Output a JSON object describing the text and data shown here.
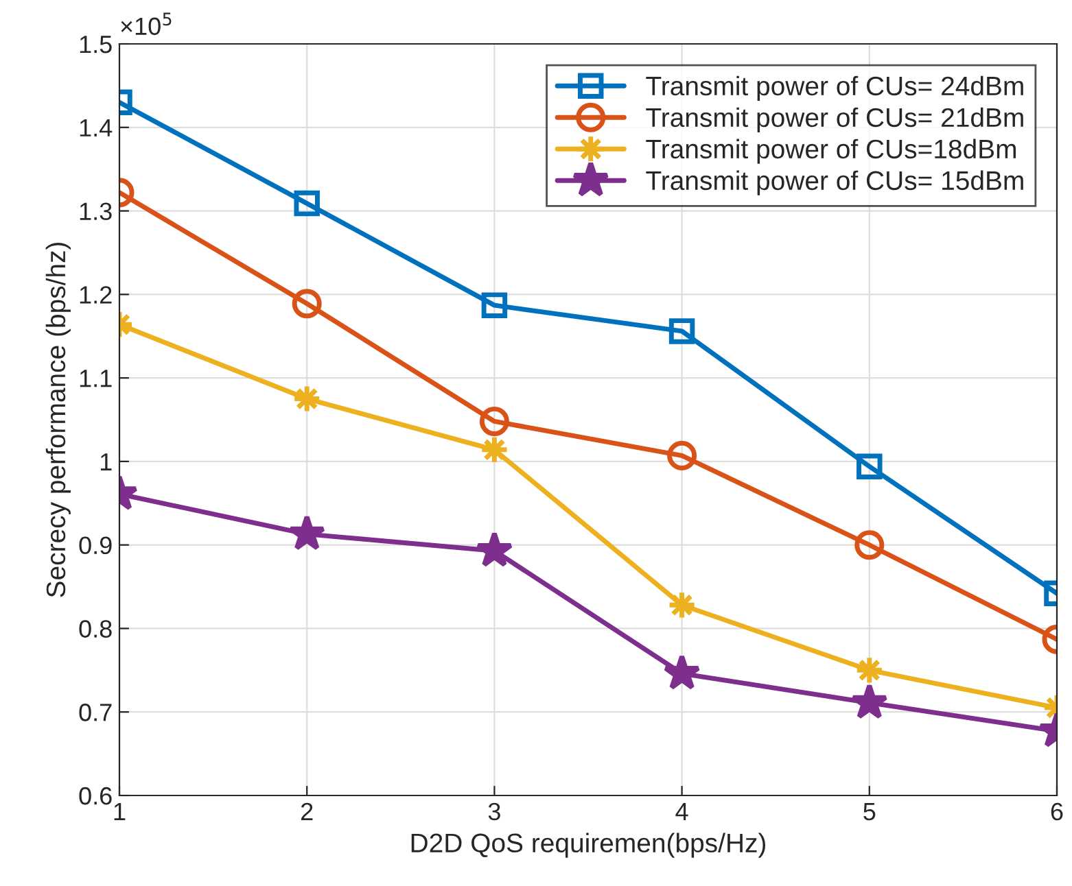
{
  "chart_data": {
    "type": "line",
    "xlabel": "D2D QoS requiremen(bps/Hz)",
    "ylabel": "Secrecy performance (bps/hz)",
    "annotations": [
      "×10$^{5}$"
    ],
    "x": [
      1,
      2,
      3,
      4,
      5,
      6
    ],
    "series": [
      {
        "name": "Transmit power of CUs= 24dBm",
        "color": "#0072bd",
        "marker": "square",
        "values": [
          1.43,
          1.309,
          1.187,
          1.156,
          0.994,
          0.842
        ]
      },
      {
        "name": "Transmit power of CUs= 21dBm",
        "color": "#d95319",
        "marker": "circle",
        "values": [
          1.322,
          1.189,
          1.048,
          1.007,
          0.9,
          0.787
        ]
      },
      {
        "name": "Transmit power of CUs=18dBm",
        "color": "#edb120",
        "marker": "cross",
        "values": [
          1.164,
          1.075,
          1.014,
          0.828,
          0.75,
          0.705
        ]
      },
      {
        "name": "Transmit power of CUs= 15dBm",
        "color": "#7e2f8e",
        "marker": "star",
        "values": [
          0.961,
          0.913,
          0.893,
          0.746,
          0.711,
          0.677
        ]
      }
    ],
    "xlim": [
      1,
      6
    ],
    "xticks": [
      1,
      2,
      3,
      4,
      5,
      6
    ],
    "ylim": [
      0.6,
      1.5
    ],
    "yticks": [
      0.6,
      0.7,
      0.8,
      0.9,
      1,
      1.1,
      1.2,
      1.3,
      1.4,
      1.5
    ],
    "grid": true,
    "legend": "top right",
    "line_style": "solid"
  }
}
